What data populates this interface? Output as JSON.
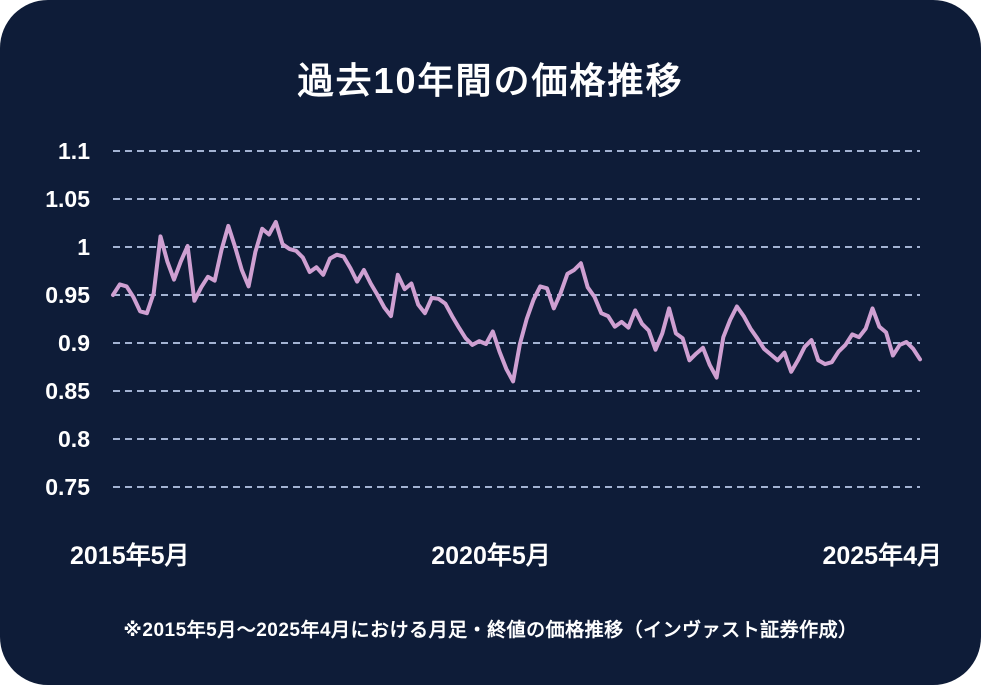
{
  "colors": {
    "page_background": "#FFFFFF",
    "card_background": "#0E1C38",
    "text": "#FFFFFF",
    "line": "#CFA0D2",
    "grid": "#A3B3D3"
  },
  "title": "過去10年間の価格推移",
  "footnote": "※2015年5月〜2025年4月における月足・終値の価格推移（インヴァスト証券作成）",
  "chart_data": {
    "type": "line",
    "title": "過去10年間の価格推移",
    "interval": "monthly",
    "x_start": "2015年5月",
    "x_end": "2025年4月",
    "x_tick_labels": [
      "2015年5月",
      "2020年5月",
      "2025年4月"
    ],
    "y_tick_labels": [
      "1.1",
      "1.05",
      "1",
      "0.95",
      "0.9",
      "0.85",
      "0.8",
      "0.75"
    ],
    "y_ticks": [
      1.1,
      1.05,
      1.0,
      0.95,
      0.9,
      0.85,
      0.8,
      0.75
    ],
    "ylim": [
      0.75,
      1.1
    ],
    "grid": "horizontal-dashed",
    "legend": "none",
    "values": [
      0.95,
      0.961,
      0.959,
      0.948,
      0.933,
      0.931,
      0.952,
      1.011,
      0.985,
      0.966,
      0.985,
      1.001,
      0.944,
      0.958,
      0.969,
      0.965,
      0.997,
      1.022,
      1.0,
      0.976,
      0.959,
      0.995,
      1.019,
      1.013,
      1.026,
      1.003,
      0.998,
      0.996,
      0.989,
      0.974,
      0.979,
      0.971,
      0.988,
      0.992,
      0.99,
      0.978,
      0.964,
      0.976,
      0.962,
      0.95,
      0.937,
      0.928,
      0.971,
      0.956,
      0.962,
      0.94,
      0.931,
      0.947,
      0.946,
      0.941,
      0.928,
      0.916,
      0.905,
      0.898,
      0.902,
      0.899,
      0.912,
      0.891,
      0.873,
      0.86,
      0.899,
      0.925,
      0.945,
      0.959,
      0.957,
      0.936,
      0.952,
      0.972,
      0.976,
      0.983,
      0.958,
      0.948,
      0.931,
      0.928,
      0.917,
      0.922,
      0.916,
      0.934,
      0.92,
      0.913,
      0.893,
      0.91,
      0.936,
      0.91,
      0.905,
      0.882,
      0.889,
      0.895,
      0.877,
      0.864,
      0.906,
      0.924,
      0.938,
      0.928,
      0.915,
      0.905,
      0.894,
      0.888,
      0.882,
      0.89,
      0.87,
      0.882,
      0.896,
      0.903,
      0.882,
      0.878,
      0.88,
      0.891,
      0.898,
      0.909,
      0.906,
      0.915,
      0.936,
      0.917,
      0.911,
      0.887,
      0.898,
      0.901,
      0.894,
      0.883
    ]
  }
}
